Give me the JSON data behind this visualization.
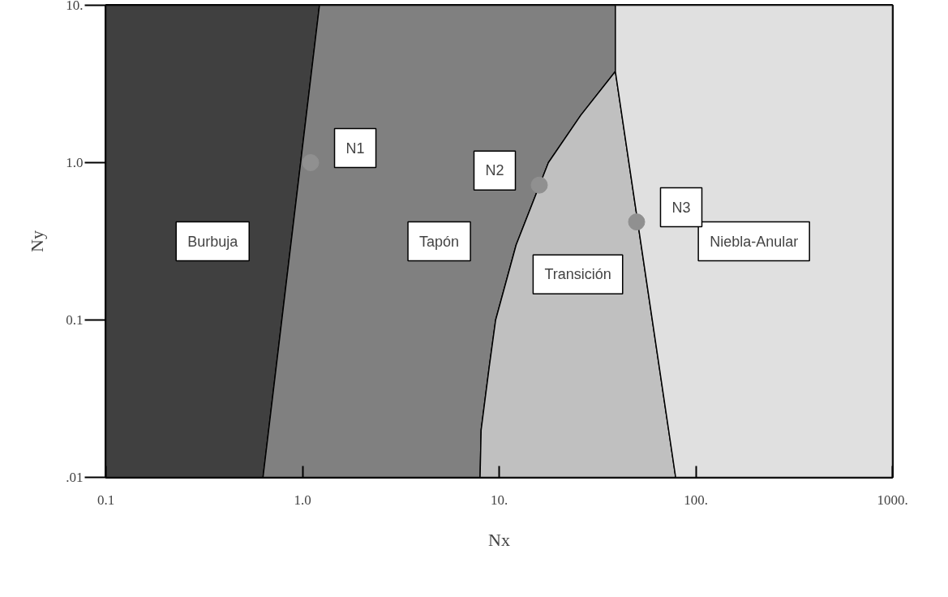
{
  "chart_data": {
    "type": "area",
    "xlabel": "Nx",
    "ylabel": "Ny",
    "log": "xy",
    "xlim": [
      0.1,
      1000
    ],
    "ylim": [
      0.01,
      10
    ],
    "xticks": [
      {
        "value": 0.1,
        "label": "0.1"
      },
      {
        "value": 1,
        "label": "1.0"
      },
      {
        "value": 10,
        "label": "10."
      },
      {
        "value": 100,
        "label": "100."
      },
      {
        "value": 1000,
        "label": "1000."
      }
    ],
    "yticks": [
      {
        "value": 0.01,
        "label": ".01"
      },
      {
        "value": 0.1,
        "label": "0.1"
      },
      {
        "value": 1,
        "label": "1.0"
      },
      {
        "value": 10,
        "label": "10."
      }
    ],
    "grid": false,
    "series": [
      {
        "name": "Burbuja",
        "color": "#404040",
        "x": [
          0.1,
          0.63,
          1.22,
          0.1
        ],
        "values": [
          0.01,
          0.01,
          10,
          10
        ]
      },
      {
        "name": "Tapón",
        "color": "#808080",
        "x": [
          0.63,
          8,
          8.1,
          8.9,
          9.6,
          12.2,
          17.8,
          26,
          39,
          39,
          1.22
        ],
        "values": [
          0.01,
          0.01,
          0.02,
          0.05,
          0.1,
          0.3,
          1,
          2,
          3.8,
          10,
          10
        ]
      },
      {
        "name": "Transición",
        "color": "#c0c0c0",
        "x": [
          8,
          8.1,
          8.9,
          9.6,
          12.2,
          17.8,
          26,
          39,
          79
        ],
        "values": [
          0.01,
          0.02,
          0.05,
          0.1,
          0.3,
          1,
          2,
          3.8,
          0.01
        ]
      },
      {
        "name": "Niebla-Anular",
        "color": "#e0e0e0",
        "x": [
          39,
          39,
          79,
          1000,
          1000
        ],
        "values": [
          10,
          3.8,
          0.01,
          0.01,
          10
        ]
      },
      {
        "type": "scatter",
        "color": "#909090",
        "x": [
          1.1,
          16,
          50
        ],
        "values": [
          1.0,
          0.72,
          0.42
        ]
      }
    ],
    "annotations": [
      {
        "text": "N1",
        "x": 1.1,
        "y": 1.0
      },
      {
        "text": "N2",
        "x": 16,
        "y": 0.72
      },
      {
        "text": "N3",
        "x": 50,
        "y": 0.42
      }
    ]
  }
}
